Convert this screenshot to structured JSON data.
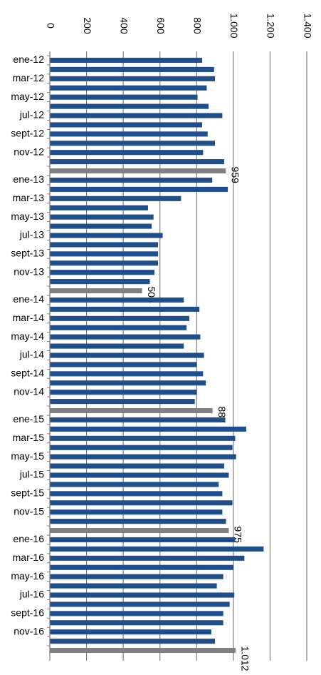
{
  "chart_data": {
    "type": "hbar",
    "categories": [
      "ene-12",
      null,
      "mar-12",
      null,
      "may-12",
      null,
      "jul-12",
      null,
      "sept-12",
      null,
      "nov-12",
      null,
      null,
      "ene-13",
      null,
      "mar-13",
      null,
      "may-13",
      null,
      "jul-13",
      null,
      "sept-13",
      null,
      "nov-13",
      null,
      null,
      "ene-14",
      null,
      "mar-14",
      null,
      "may-14",
      null,
      "jul-14",
      null,
      "sept-14",
      null,
      "nov-14",
      null,
      null,
      "ene-15",
      null,
      "mar-15",
      null,
      "may-15",
      null,
      "jul-15",
      null,
      "sept-15",
      null,
      "nov-15",
      null,
      null,
      "ene-16",
      null,
      "mar-16",
      null,
      "may-16",
      null,
      "jul-16",
      null,
      "sept-16",
      null,
      "nov-16",
      null,
      null
    ],
    "values": [
      830,
      895,
      900,
      855,
      805,
      865,
      940,
      830,
      860,
      900,
      835,
      950,
      959,
      885,
      970,
      715,
      535,
      565,
      555,
      615,
      590,
      590,
      590,
      570,
      545,
      503,
      730,
      815,
      760,
      745,
      820,
      730,
      840,
      800,
      835,
      850,
      800,
      790,
      887,
      955,
      1070,
      1010,
      995,
      1015,
      950,
      975,
      920,
      940,
      995,
      940,
      960,
      975,
      1010,
      1165,
      1060,
      1000,
      945,
      910,
      1005,
      980,
      945,
      945,
      880,
      900,
      1012
    ],
    "value_labels": [
      null,
      null,
      null,
      null,
      null,
      null,
      null,
      null,
      null,
      null,
      null,
      null,
      "959",
      null,
      null,
      null,
      null,
      null,
      null,
      null,
      null,
      null,
      null,
      null,
      null,
      "503",
      null,
      null,
      null,
      null,
      null,
      null,
      null,
      null,
      null,
      null,
      null,
      null,
      "887",
      null,
      null,
      null,
      null,
      null,
      null,
      null,
      null,
      null,
      null,
      null,
      null,
      "975",
      null,
      null,
      null,
      null,
      null,
      null,
      null,
      null,
      null,
      null,
      null,
      null,
      "1.012"
    ],
    "colors": [
      "#1f4e8c",
      "#1f4e8c",
      "#1f4e8c",
      "#1f4e8c",
      "#1f4e8c",
      "#1f4e8c",
      "#1f4e8c",
      "#1f4e8c",
      "#1f4e8c",
      "#1f4e8c",
      "#1f4e8c",
      "#1f4e8c",
      "#808080",
      "#1f4e8c",
      "#1f4e8c",
      "#1f4e8c",
      "#1f4e8c",
      "#1f4e8c",
      "#1f4e8c",
      "#1f4e8c",
      "#1f4e8c",
      "#1f4e8c",
      "#1f4e8c",
      "#1f4e8c",
      "#1f4e8c",
      "#808080",
      "#1f4e8c",
      "#1f4e8c",
      "#1f4e8c",
      "#1f4e8c",
      "#1f4e8c",
      "#1f4e8c",
      "#1f4e8c",
      "#1f4e8c",
      "#1f4e8c",
      "#1f4e8c",
      "#1f4e8c",
      "#1f4e8c",
      "#808080",
      "#1f4e8c",
      "#1f4e8c",
      "#1f4e8c",
      "#1f4e8c",
      "#1f4e8c",
      "#1f4e8c",
      "#1f4e8c",
      "#1f4e8c",
      "#1f4e8c",
      "#1f4e8c",
      "#1f4e8c",
      "#1f4e8c",
      "#808080",
      "#1f4e8c",
      "#1f4e8c",
      "#1f4e8c",
      "#1f4e8c",
      "#1f4e8c",
      "#1f4e8c",
      "#1f4e8c",
      "#1f4e8c",
      "#1f4e8c",
      "#1f4e8c",
      "#1f4e8c",
      "#1f4e8c",
      "#808080"
    ],
    "xlim": [
      0,
      1400
    ],
    "xticks": [
      0,
      200,
      400,
      600,
      800,
      {
        "value": 1000,
        "label": "1.000"
      },
      {
        "value": 1200,
        "label": "1.200"
      },
      {
        "value": 1400,
        "label": "1.400"
      }
    ],
    "grid": true
  }
}
